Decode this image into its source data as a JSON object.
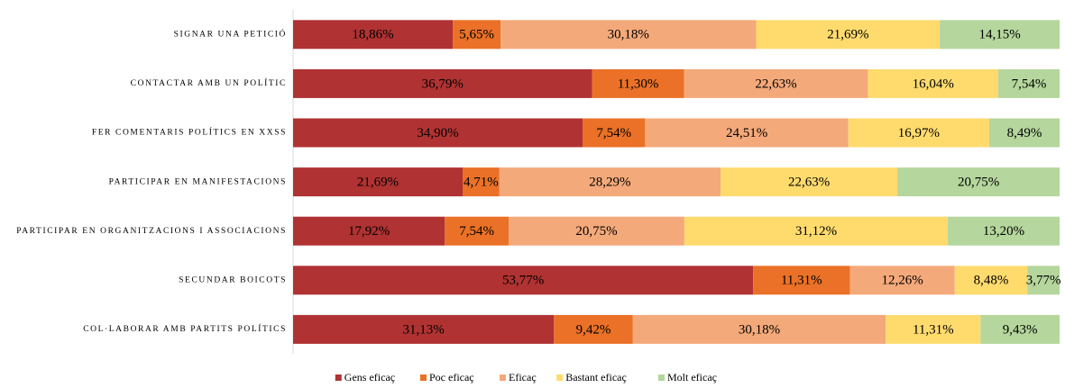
{
  "chart_data": {
    "type": "stacked_bar_100",
    "categories": [
      "SIGNAR UNA PETICIÓ",
      "CONTACTAR AMB UN POLÍTIC",
      "FER COMENTARIS POLÍTICS EN XXSS",
      "PARTICIPAR EN MANIFESTACIONS",
      "PARTICIPAR EN ORGANITZACIONS I ASSOCIACIONS",
      "SECUNDAR BOICOTS",
      "COL·LABORAR AMB PARTITS POLÍTICS"
    ],
    "series": [
      {
        "name": "Gens eficaç",
        "color": "#b03232",
        "values": [
          18.86,
          36.79,
          34.9,
          21.69,
          17.92,
          53.77,
          31.13
        ],
        "value_labels": [
          "18,86%",
          "36,79%",
          "34,90%",
          "21,69%",
          "17,92%",
          "53,77%",
          "31,13%"
        ]
      },
      {
        "name": "Poc eficaç",
        "color": "#ea7127",
        "values": [
          5.65,
          11.3,
          7.54,
          4.71,
          7.54,
          11.31,
          9.42
        ],
        "value_labels": [
          "5,65%",
          "11,30%",
          "7,54%",
          "4,71%",
          "7,54%",
          "11,31%",
          "9,42%"
        ]
      },
      {
        "name": "Eficaç",
        "color": "#f4a97a",
        "values": [
          30.18,
          22.63,
          24.51,
          28.29,
          20.75,
          12.26,
          30.18
        ],
        "value_labels": [
          "30,18%",
          "22,63%",
          "24,51%",
          "28,29%",
          "20,75%",
          "12,26%",
          "30,18%"
        ]
      },
      {
        "name": "Bastant eficaç",
        "color": "#ffdb6e",
        "values": [
          21.69,
          16.04,
          16.97,
          22.63,
          31.12,
          8.48,
          11.31
        ],
        "value_labels": [
          "21,69%",
          "16,04%",
          "16,97%",
          "22,63%",
          "31,12%",
          "8,48%",
          "11,31%"
        ]
      },
      {
        "name": "Molt eficaç",
        "color": "#b5d69c",
        "values": [
          14.15,
          7.54,
          8.49,
          20.75,
          13.2,
          3.77,
          9.43
        ],
        "value_labels": [
          "14,15%",
          "7,54%",
          "8,49%",
          "20,75%",
          "13,20%",
          "3,77%",
          "9,43%"
        ]
      }
    ],
    "legend": "bottom"
  }
}
